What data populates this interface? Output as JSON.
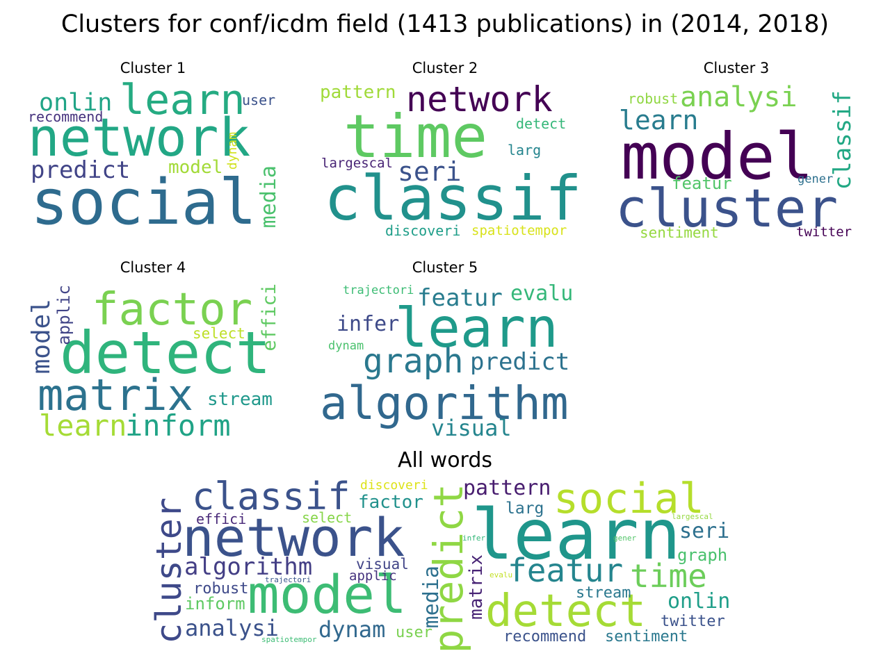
{
  "title": "Clusters for conf/icdm field (1413 publications) in (2014, 2018)",
  "panels": [
    {
      "title": "Cluster 1",
      "words": [
        {
          "text": "social",
          "color": "#2e6b8e"
        },
        {
          "text": "network",
          "color": "#22a785"
        },
        {
          "text": "learn",
          "color": "#25ab82"
        },
        {
          "text": "onlin",
          "color": "#20a486"
        },
        {
          "text": "predict",
          "color": "#414487"
        },
        {
          "text": "recommend",
          "color": "#46337e"
        },
        {
          "text": "user",
          "color": "#3b528b"
        },
        {
          "text": "model",
          "color": "#a2da37"
        },
        {
          "text": "dynam",
          "color": "#d0e11c"
        },
        {
          "text": "media",
          "color": "#4ac16d"
        }
      ]
    },
    {
      "title": "Cluster 2",
      "words": [
        {
          "text": "classif",
          "color": "#21918c"
        },
        {
          "text": "time",
          "color": "#5ec962"
        },
        {
          "text": "network",
          "color": "#440154"
        },
        {
          "text": "seri",
          "color": "#3b528b"
        },
        {
          "text": "pattern",
          "color": "#a0da39"
        },
        {
          "text": "detect",
          "color": "#35b779"
        },
        {
          "text": "larg",
          "color": "#25858e"
        },
        {
          "text": "largescal",
          "color": "#482475"
        },
        {
          "text": "discoveri",
          "color": "#1f9e89"
        },
        {
          "text": "spatiotempor",
          "color": "#d8e219"
        }
      ]
    },
    {
      "title": "Cluster 3",
      "words": [
        {
          "text": "model",
          "color": "#440154"
        },
        {
          "text": "cluster",
          "color": "#3b528b"
        },
        {
          "text": "analysi",
          "color": "#7ad151"
        },
        {
          "text": "learn",
          "color": "#287c8e"
        },
        {
          "text": "classif",
          "color": "#22a884"
        },
        {
          "text": "robust",
          "color": "#90d743"
        },
        {
          "text": "featur",
          "color": "#52c569"
        },
        {
          "text": "gener",
          "color": "#2d708e"
        },
        {
          "text": "sentiment",
          "color": "#95d840"
        },
        {
          "text": "twitter",
          "color": "#440154"
        }
      ]
    },
    {
      "title": "Cluster 4",
      "words": [
        {
          "text": "detect",
          "color": "#2fb47c"
        },
        {
          "text": "factor",
          "color": "#7ad151"
        },
        {
          "text": "matrix",
          "color": "#2c728e"
        },
        {
          "text": "model",
          "color": "#3b528b"
        },
        {
          "text": "applic",
          "color": "#414487"
        },
        {
          "text": "select",
          "color": "#bddf26"
        },
        {
          "text": "effici",
          "color": "#5ec962"
        },
        {
          "text": "stream",
          "color": "#1f988b"
        },
        {
          "text": "learn",
          "color": "#a5db36"
        },
        {
          "text": "inform",
          "color": "#20a386"
        }
      ]
    },
    {
      "title": "Cluster 5",
      "words": [
        {
          "text": "learn",
          "color": "#1f9a8a"
        },
        {
          "text": "algorithm",
          "color": "#31688e"
        },
        {
          "text": "graph",
          "color": "#2a788e"
        },
        {
          "text": "predict",
          "color": "#2c728e"
        },
        {
          "text": "featur",
          "color": "#287c8e"
        },
        {
          "text": "evalu",
          "color": "#35b779"
        },
        {
          "text": "infer",
          "color": "#3e4a89"
        },
        {
          "text": "trajectori",
          "color": "#3cbc74"
        },
        {
          "text": "dynam",
          "color": "#4ac16d"
        },
        {
          "text": "visual",
          "color": "#25858e"
        }
      ]
    },
    {
      "title": "All words",
      "words": [
        {
          "text": "network",
          "color": "#3b528b"
        },
        {
          "text": "learn",
          "color": "#1f968b"
        },
        {
          "text": "model",
          "color": "#3dbc74"
        },
        {
          "text": "detect",
          "color": "#a5db36"
        },
        {
          "text": "classif",
          "color": "#3b528b"
        },
        {
          "text": "social",
          "color": "#b5de2b"
        },
        {
          "text": "predict",
          "color": "#8fd744"
        },
        {
          "text": "cluster",
          "color": "#3e4989"
        },
        {
          "text": "featur",
          "color": "#25858e"
        },
        {
          "text": "time",
          "color": "#6ccd5a"
        },
        {
          "text": "algorithm",
          "color": "#433e85"
        },
        {
          "text": "pattern",
          "color": "#481d6f"
        },
        {
          "text": "factor",
          "color": "#21918c"
        },
        {
          "text": "discoveri",
          "color": "#dde318"
        },
        {
          "text": "larg",
          "color": "#2c728e"
        },
        {
          "text": "seri",
          "color": "#2d708e"
        },
        {
          "text": "graph",
          "color": "#4ac16d"
        },
        {
          "text": "onlin",
          "color": "#1f9e89"
        },
        {
          "text": "effici",
          "color": "#482878"
        },
        {
          "text": "select",
          "color": "#86d549"
        },
        {
          "text": "largescal",
          "color": "#95d840"
        },
        {
          "text": "infer",
          "color": "#35b779"
        },
        {
          "text": "gener",
          "color": "#52c569"
        },
        {
          "text": "visual",
          "color": "#414487"
        },
        {
          "text": "applic",
          "color": "#46337e"
        },
        {
          "text": "trajectori",
          "color": "#39568c"
        },
        {
          "text": "evalu",
          "color": "#c2df23"
        },
        {
          "text": "matrix",
          "color": "#482475"
        },
        {
          "text": "robust",
          "color": "#3e4989"
        },
        {
          "text": "inform",
          "color": "#5ec962"
        },
        {
          "text": "media",
          "color": "#2d708e"
        },
        {
          "text": "stream",
          "color": "#2a788e"
        },
        {
          "text": "analysi",
          "color": "#3b528b"
        },
        {
          "text": "dynam",
          "color": "#31688e"
        },
        {
          "text": "user",
          "color": "#7ad151"
        },
        {
          "text": "spatiotempor",
          "color": "#3cbc74"
        },
        {
          "text": "recommend",
          "color": "#3b528b"
        },
        {
          "text": "sentiment",
          "color": "#2a788e"
        },
        {
          "text": "twitter",
          "color": "#3b528b"
        }
      ]
    }
  ]
}
